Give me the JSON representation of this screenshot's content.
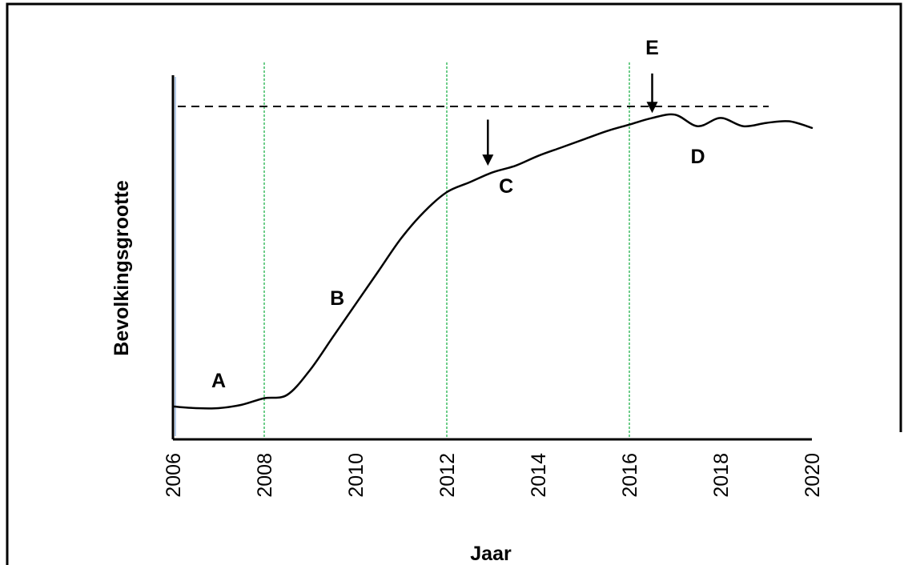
{
  "chart_data": {
    "type": "line",
    "title": "",
    "xlabel": "Jaar",
    "ylabel": "Bevolkingsgrootte",
    "x_ticks": [
      "2006",
      "2008",
      "2010",
      "2012",
      "2014",
      "2016",
      "2018",
      "2020"
    ],
    "xlim": [
      2006,
      2020
    ],
    "gridlines_x": [
      2008,
      2012,
      2016
    ],
    "carrying_capacity_line": "dashed",
    "series": [
      {
        "x": [
          2006,
          2006.5,
          2007,
          2007.5,
          2008,
          2008.5,
          2009,
          2009.5,
          2010,
          2010.5,
          2011,
          2011.5,
          2012,
          2012.5,
          2013,
          2013.5,
          2014,
          2014.5,
          2015,
          2015.5,
          2016,
          2016.5,
          2017,
          2017.5,
          2018,
          2018.5,
          2019,
          2019.5,
          2020
        ],
        "y": [
          0.09,
          0.085,
          0.085,
          0.095,
          0.115,
          0.125,
          0.2,
          0.3,
          0.4,
          0.5,
          0.6,
          0.68,
          0.74,
          0.77,
          0.8,
          0.82,
          0.85,
          0.875,
          0.9,
          0.925,
          0.945,
          0.965,
          0.975,
          0.94,
          0.965,
          0.94,
          0.95,
          0.955,
          0.935
        ]
      }
    ],
    "annotations": [
      {
        "label": "A",
        "x": 2007,
        "y": 0.17
      },
      {
        "label": "B",
        "x": 2009.6,
        "y": 0.42
      },
      {
        "label": "C",
        "x": 2013.3,
        "y": 0.76
      },
      {
        "label": "D",
        "x": 2017.5,
        "y": 0.85
      },
      {
        "label": "E",
        "x": 2016.5,
        "y": 1.18
      }
    ],
    "arrows": [
      {
        "x": 2012.9,
        "y_top": 0.96,
        "y_tip": 0.82
      },
      {
        "x": 2016.5,
        "y_top": 1.1,
        "y_tip": 0.98
      }
    ]
  }
}
